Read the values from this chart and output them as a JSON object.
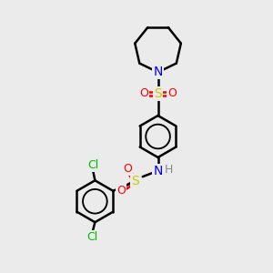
{
  "background_color": "#ebebeb",
  "atom_colors": {
    "C": "#000000",
    "N": "#0000ee",
    "S": "#cccc00",
    "O": "#ff0000",
    "Cl": "#00bb00",
    "H": "#888888"
  },
  "bond_color": "#000000",
  "bond_width": 1.8,
  "figsize": [
    3.0,
    3.0
  ],
  "dpi": 100
}
